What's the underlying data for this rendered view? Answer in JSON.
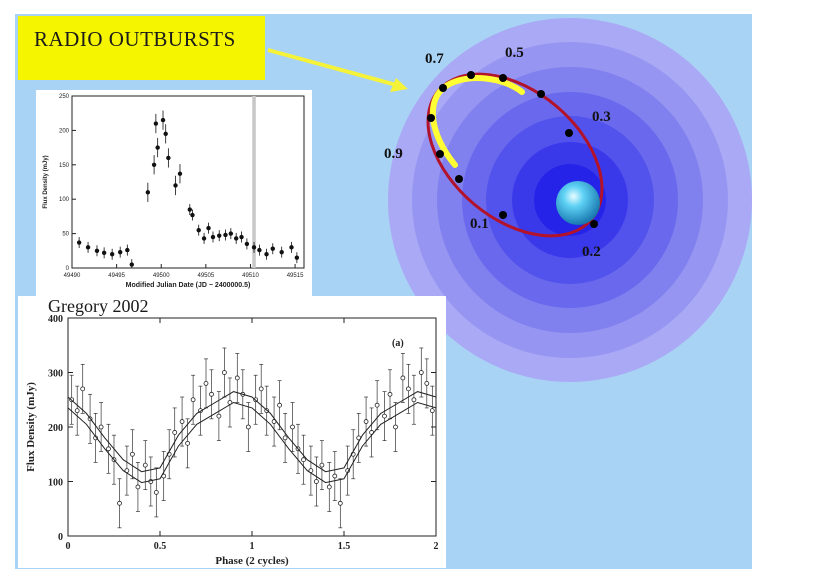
{
  "slide": {
    "title": "RADIO  OUTBURSTS",
    "credit": "Gregory 2002"
  },
  "orbit": {
    "phase_labels": [
      "0.7",
      "0.5",
      "0.3",
      "0.9",
      "0.1",
      "0.2"
    ],
    "colors": {
      "orbit": "#b3132a",
      "outburst_arc": "#ffff33",
      "star": "#39b7e8",
      "arrow": "#f5f23a"
    }
  },
  "chart_data": [
    {
      "type": "scatter",
      "xlabel": "Modified Julian Date (JD − 2400000.5)",
      "ylabel": "Flux Density (mJy)",
      "xlim": [
        49490,
        49516
      ],
      "ylim": [
        0,
        250
      ],
      "xticks": [
        49490,
        49495,
        49500,
        49505,
        49510,
        49515
      ],
      "yticks": [
        0,
        50,
        100,
        150,
        200,
        250
      ],
      "shaded_region": [
        49510.2,
        49510.6
      ],
      "series": [
        {
          "x": [
            49490.8,
            49491.8,
            49492.8,
            49493.6,
            49494.5,
            49495.4,
            49496.2,
            49496.7,
            49498.5,
            49499.2,
            49499.4,
            49499.6,
            49500.2,
            49500.5,
            49500.8,
            49501.6,
            49502.1,
            49503.2,
            49503.5,
            49504.2,
            49504.8,
            49505.3,
            49505.8,
            49506.5,
            49507.2,
            49507.8,
            49508.4,
            49509.0,
            49509.6,
            49510.4,
            49511.0,
            49511.8,
            49512.5,
            49513.5,
            49514.6,
            49515.2
          ],
          "y": [
            37,
            30,
            25,
            22,
            20,
            23,
            26,
            5,
            110,
            150,
            210,
            175,
            215,
            195,
            160,
            120,
            137,
            85,
            77,
            55,
            43,
            58,
            45,
            47,
            48,
            50,
            43,
            45,
            35,
            30,
            26,
            20,
            28,
            23,
            30,
            15
          ]
        }
      ]
    },
    {
      "type": "scatter",
      "xlabel": "Phase  (2 cycles)",
      "ylabel": "Flux Density  (mJy)",
      "panel_label": "(a)",
      "xlim": [
        0,
        2
      ],
      "ylim": [
        0,
        400
      ],
      "xticks": [
        "0",
        "0.5",
        "1",
        "1.5",
        "2"
      ],
      "yticks": [
        "0",
        "100",
        "200",
        "300",
        "400"
      ],
      "series": [
        {
          "x": [
            0.02,
            0.05,
            0.08,
            0.12,
            0.15,
            0.18,
            0.22,
            0.25,
            0.28,
            0.32,
            0.35,
            0.38,
            0.42,
            0.45,
            0.48,
            0.52,
            0.55,
            0.58,
            0.62,
            0.65,
            0.68,
            0.72,
            0.75,
            0.78,
            0.82,
            0.85,
            0.88,
            0.92,
            0.95,
            0.98,
            1.02,
            1.05,
            1.08,
            1.12,
            1.15,
            1.18,
            1.22,
            1.25,
            1.28,
            1.32,
            1.35,
            1.38,
            1.42,
            1.45,
            1.48,
            1.52,
            1.55,
            1.58,
            1.62,
            1.65,
            1.68,
            1.72,
            1.75,
            1.78,
            1.82,
            1.85,
            1.88,
            1.92,
            1.95,
            1.98
          ],
          "y": [
            250,
            230,
            270,
            215,
            180,
            200,
            160,
            140,
            60,
            120,
            150,
            90,
            130,
            100,
            80,
            110,
            150,
            190,
            210,
            170,
            250,
            230,
            280,
            260,
            220,
            300,
            245,
            290,
            260,
            200,
            250,
            270,
            230,
            210,
            240,
            180,
            200,
            160,
            140,
            120,
            100,
            130,
            90,
            110,
            60,
            120,
            150,
            180,
            210,
            190,
            240,
            220,
            260,
            200,
            290,
            270,
            250,
            300,
            280,
            230
          ]
        },
        {
          "name": "",
          "x": [
            0,
            0.1,
            0.2,
            0.3,
            0.4,
            0.5,
            0.6,
            0.7,
            0.8,
            0.9,
            1.0,
            1.1,
            1.2,
            1.3,
            1.4,
            1.5,
            1.6,
            1.7,
            1.8,
            1.9,
            2.0
          ],
          "y": [
            255,
            225,
            180,
            140,
            118,
            125,
            185,
            225,
            245,
            265,
            255,
            225,
            180,
            140,
            118,
            125,
            185,
            225,
            245,
            265,
            255
          ]
        },
        {
          "name": "",
          "x": [
            0,
            0.1,
            0.2,
            0.3,
            0.4,
            0.5,
            0.6,
            0.7,
            0.8,
            0.9,
            1.0,
            1.1,
            1.2,
            1.3,
            1.4,
            1.5,
            1.6,
            1.7,
            1.8,
            1.9,
            2.0
          ],
          "y": [
            235,
            205,
            160,
            120,
            98,
            105,
            165,
            205,
            225,
            245,
            235,
            205,
            160,
            120,
            98,
            105,
            165,
            205,
            225,
            245,
            235
          ]
        }
      ]
    }
  ]
}
